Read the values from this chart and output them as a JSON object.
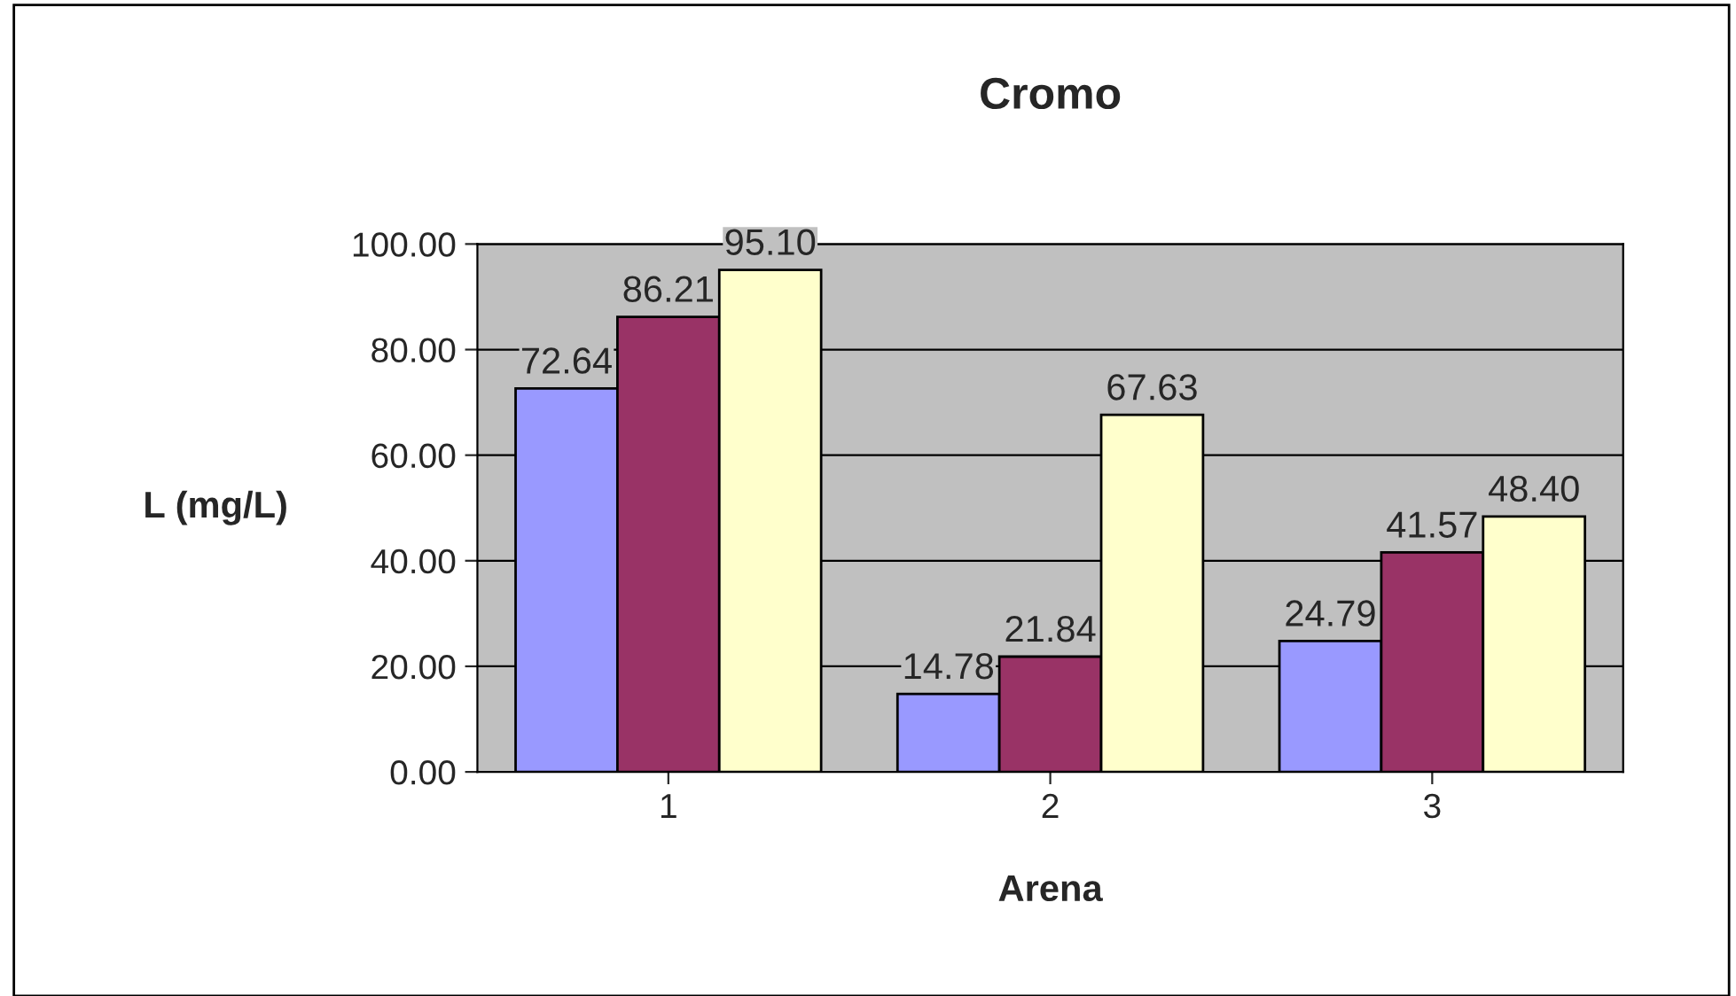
{
  "chart_data": {
    "type": "bar",
    "title": "Cromo",
    "xlabel": "Arena",
    "ylabel": "L (mg/L)",
    "categories": [
      "1",
      "2",
      "3"
    ],
    "series": [
      {
        "color": "#9999ff",
        "values": [
          72.64,
          14.78,
          24.79
        ],
        "value_labels": [
          "72.64",
          "14.78",
          "24.79"
        ]
      },
      {
        "color": "#993366",
        "values": [
          86.21,
          21.84,
          41.57
        ],
        "value_labels": [
          "86.21",
          "21.84",
          "41.57"
        ]
      },
      {
        "color": "#ffffcc",
        "values": [
          95.1,
          67.63,
          48.4
        ],
        "value_labels": [
          "95.10",
          "67.63",
          "48.40"
        ]
      }
    ],
    "ylim": [
      0,
      100
    ],
    "yticks": [
      {
        "value": 0,
        "label": "0.00"
      },
      {
        "value": 20,
        "label": "20.00"
      },
      {
        "value": 40,
        "label": "40.00"
      },
      {
        "value": 60,
        "label": "60.00"
      },
      {
        "value": 80,
        "label": "80.00"
      },
      {
        "value": 100,
        "label": "100.00"
      }
    ],
    "grid": "y",
    "legend": false
  }
}
